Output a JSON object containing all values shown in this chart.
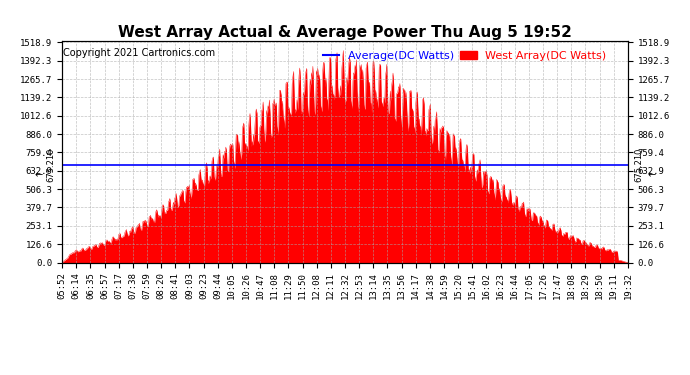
{
  "title": "West Array Actual & Average Power Thu Aug 5 19:52",
  "copyright": "Copyright 2021 Cartronics.com",
  "legend_avg": "Average(DC Watts)",
  "legend_west": "West Array(DC Watts)",
  "avg_color": "blue",
  "west_color": "red",
  "avg_line_value": 675.21,
  "ymax": 1518.9,
  "ymin": 0.0,
  "yticks": [
    0.0,
    126.6,
    253.1,
    379.7,
    506.3,
    632.9,
    759.4,
    886.0,
    1012.6,
    1139.2,
    1265.7,
    1392.3,
    1518.9
  ],
  "background_color": "#ffffff",
  "grid_color": "#aaaaaa",
  "title_fontsize": 11,
  "copyright_fontsize": 7,
  "legend_fontsize": 8,
  "tick_fontsize": 6.5,
  "xtick_labels": [
    "05:52",
    "06:14",
    "06:35",
    "06:57",
    "07:17",
    "07:38",
    "07:59",
    "08:20",
    "08:41",
    "09:03",
    "09:23",
    "09:44",
    "10:05",
    "10:26",
    "10:47",
    "11:08",
    "11:29",
    "11:50",
    "12:08",
    "12:11",
    "12:32",
    "12:53",
    "13:14",
    "13:35",
    "13:56",
    "14:17",
    "14:38",
    "14:59",
    "15:20",
    "15:41",
    "16:02",
    "16:23",
    "16:44",
    "17:05",
    "17:26",
    "17:47",
    "18:08",
    "18:29",
    "18:50",
    "19:11",
    "19:32"
  ]
}
